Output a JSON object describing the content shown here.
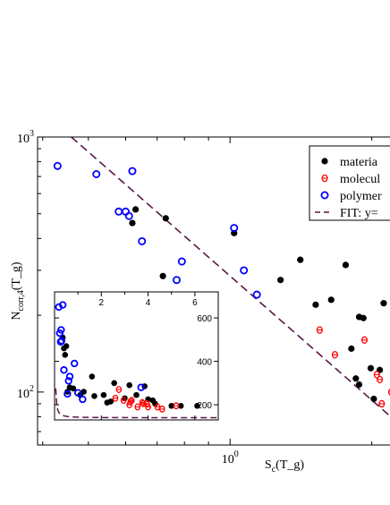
{
  "chart_data": [
    {
      "type": "scatter",
      "scale": "log-log",
      "xlabel": "S_c(T_g)",
      "ylabel": "N_corr,4(T_g)",
      "xlim": [
        0.39,
        2.45
      ],
      "ylim": [
        62,
        1000
      ],
      "x_major_ticks": [
        {
          "value": 1,
          "base": "10",
          "exp": "0"
        }
      ],
      "y_major_ticks": [
        {
          "value": 100,
          "base": "10",
          "exp": "2"
        },
        {
          "value": 1000,
          "base": "10",
          "exp": "3"
        }
      ],
      "legend": {
        "placement": "top-right",
        "entries": [
          {
            "label": "materia",
            "marker": "filled-circle"
          },
          {
            "label": "molecul",
            "marker": "red-ring"
          },
          {
            "label": "polymer",
            "marker": "open-circle"
          },
          {
            "label": "FIT: y=",
            "marker": "dashed-line"
          }
        ]
      },
      "series": [
        {
          "key": "materials",
          "color": "#000000",
          "points": [
            [
              0.63,
              520
            ],
            [
              0.62,
              460
            ],
            [
              0.73,
              480
            ],
            [
              0.72,
              285
            ],
            [
              1.02,
              420
            ],
            [
              1.28,
              275
            ],
            [
              1.41,
              330
            ],
            [
              1.52,
              220
            ],
            [
              1.64,
              230
            ],
            [
              1.76,
              315
            ],
            [
              1.81,
              148
            ],
            [
              1.85,
              113
            ],
            [
              1.88,
              107
            ],
            [
              1.88,
              197
            ],
            [
              1.92,
              195
            ],
            [
              1.99,
              124
            ],
            [
              2.02,
              94
            ],
            [
              2.08,
              122
            ],
            [
              2.12,
              223
            ],
            [
              2.22,
              88
            ],
            [
              2.27,
              186
            ],
            [
              2.37,
              110
            ],
            [
              2.44,
              210
            ]
          ]
        },
        {
          "key": "molecular",
          "color": "#ff0000",
          "points": [
            [
              1.55,
              175
            ],
            [
              1.67,
              140
            ],
            [
              1.93,
              160
            ],
            [
              2.05,
              117
            ],
            [
              2.08,
              112
            ],
            [
              2.1,
              90
            ],
            [
              2.2,
              100
            ],
            [
              2.26,
              119
            ],
            [
              2.29,
              99
            ],
            [
              2.32,
              104
            ],
            [
              2.36,
              92
            ],
            [
              2.43,
              116
            ]
          ]
        },
        {
          "key": "polymers",
          "color": "#0000ff",
          "points": [
            [
              0.43,
              770
            ],
            [
              0.52,
              715
            ],
            [
              0.58,
              510
            ],
            [
              0.6,
              510
            ],
            [
              0.61,
              490
            ],
            [
              0.62,
              735
            ],
            [
              0.65,
              390
            ],
            [
              0.77,
              275
            ],
            [
              0.79,
              325
            ],
            [
              1.02,
              440
            ],
            [
              1.07,
              300
            ],
            [
              1.14,
              241
            ],
            [
              2.3,
              184
            ]
          ]
        }
      ],
      "fit": {
        "label": "FIT",
        "x": [
          0.46,
          2.45
        ],
        "y": [
          1000,
          67
        ]
      }
    },
    {
      "type": "scatter",
      "scale": "linear",
      "placement": "inset-lower-left",
      "xlim": [
        0,
        7
      ],
      "ylim": [
        130,
        720
      ],
      "x_ticks": [
        {
          "value": 2,
          "label": "2"
        },
        {
          "value": 4,
          "label": "4"
        },
        {
          "value": 6,
          "label": "6"
        }
      ],
      "y_ticks": [
        {
          "value": 200,
          "label": "200"
        },
        {
          "value": 400,
          "label": "400"
        },
        {
          "value": 600,
          "label": "600"
        }
      ],
      "series": [
        {
          "key": "materials",
          "color": "#000000",
          "points": [
            [
              0.35,
              510
            ],
            [
              0.4,
              460
            ],
            [
              0.45,
              430
            ],
            [
              0.5,
              470
            ],
            [
              0.55,
              260
            ],
            [
              0.65,
              280
            ],
            [
              0.8,
              275
            ],
            [
              1.1,
              245
            ],
            [
              1.25,
              260
            ],
            [
              1.6,
              330
            ],
            [
              1.7,
              240
            ],
            [
              2.1,
              245
            ],
            [
              2.25,
              210
            ],
            [
              2.4,
              215
            ],
            [
              2.55,
              300
            ],
            [
              3.0,
              230
            ],
            [
              3.2,
              290
            ],
            [
              3.5,
              245
            ],
            [
              3.85,
              285
            ],
            [
              4.0,
              225
            ],
            [
              4.2,
              220
            ],
            [
              4.3,
              205
            ],
            [
              5.0,
              195
            ],
            [
              5.4,
              195
            ],
            [
              6.1,
              195
            ]
          ]
        },
        {
          "key": "molecular",
          "color": "#ff0000",
          "points": [
            [
              2.6,
              230
            ],
            [
              2.75,
              270
            ],
            [
              2.95,
              220
            ],
            [
              3.2,
              200
            ],
            [
              3.25,
              215
            ],
            [
              3.3,
              220
            ],
            [
              3.55,
              190
            ],
            [
              3.75,
              210
            ],
            [
              3.8,
              205
            ],
            [
              3.95,
              205
            ],
            [
              4.0,
              190
            ],
            [
              4.4,
              190
            ],
            [
              4.6,
              180
            ],
            [
              5.2,
              195
            ]
          ]
        },
        {
          "key": "polymers",
          "color": "#0000ff",
          "points": [
            [
              0.18,
              650
            ],
            [
              0.22,
              530
            ],
            [
              0.28,
              545
            ],
            [
              0.26,
              490
            ],
            [
              0.3,
              495
            ],
            [
              0.35,
              660
            ],
            [
              0.4,
              360
            ],
            [
              0.55,
              250
            ],
            [
              0.6,
              310
            ],
            [
              0.65,
              330
            ],
            [
              0.85,
              390
            ],
            [
              1.0,
              255
            ],
            [
              1.2,
              225
            ],
            [
              3.7,
              280
            ]
          ]
        }
      ],
      "fit": {
        "a": 2.75,
        "b": 1.3,
        "c": 140
      }
    }
  ]
}
